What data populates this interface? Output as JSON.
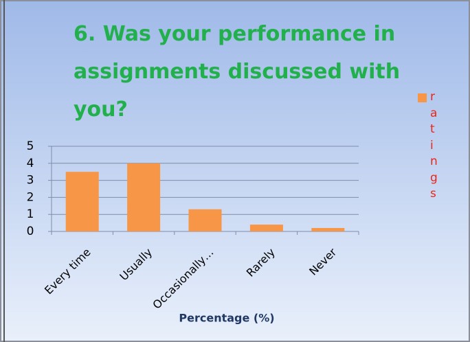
{
  "chart_data": {
    "type": "bar",
    "title": "6. Was your performance in assignments discussed with you?",
    "x_label": "Percentage (%)",
    "categories": [
      "Every time",
      "Usually",
      "Occasionally…",
      "Rarely",
      "Never"
    ],
    "series": [
      {
        "name": "ratings",
        "color": "#f79646",
        "values": [
          3.5,
          4.0,
          1.3,
          0.4,
          0.2
        ]
      }
    ],
    "ylim": [
      0,
      5
    ],
    "yticks": [
      0,
      1,
      2,
      3,
      4,
      5
    ],
    "grid": true,
    "legend": "right"
  }
}
